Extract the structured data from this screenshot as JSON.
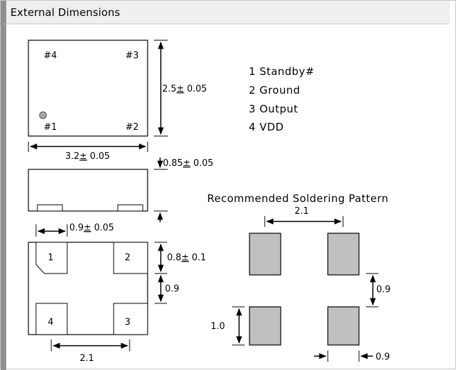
{
  "header": {
    "title": "External Dimensions"
  },
  "top_view": {
    "pin_labels": [
      "#4",
      "#3",
      "#1",
      "#2"
    ],
    "width_dim": "3.2",
    "width_tol": "0.05",
    "height_dim": "2.5",
    "height_tol": "0.05"
  },
  "pin_legend": [
    "1 Standby#",
    "2 Ground",
    "3 Output",
    "4 VDD"
  ],
  "side_view": {
    "thickness_dim": "0.85",
    "thickness_tol": "0.05"
  },
  "bottom_view": {
    "pad_labels": [
      "1",
      "2",
      "4",
      "3"
    ],
    "pad_width_dim": "0.9",
    "pad_width_tol": "0.05",
    "pad_height_dim": "0.8",
    "pad_height_tol": "0.1",
    "pad_gap": "0.9",
    "pad_pitch": "2.1"
  },
  "soldering": {
    "title": "Recommended Soldering Pattern",
    "pitch_x": "2.1",
    "gap_y": "0.9",
    "pad_height": "1.0",
    "pad_width": "0.9"
  },
  "colors": {
    "pad_fill": "#c0c0c0",
    "header_bg": "#efefef",
    "header_accent": "#8f8f8f"
  }
}
